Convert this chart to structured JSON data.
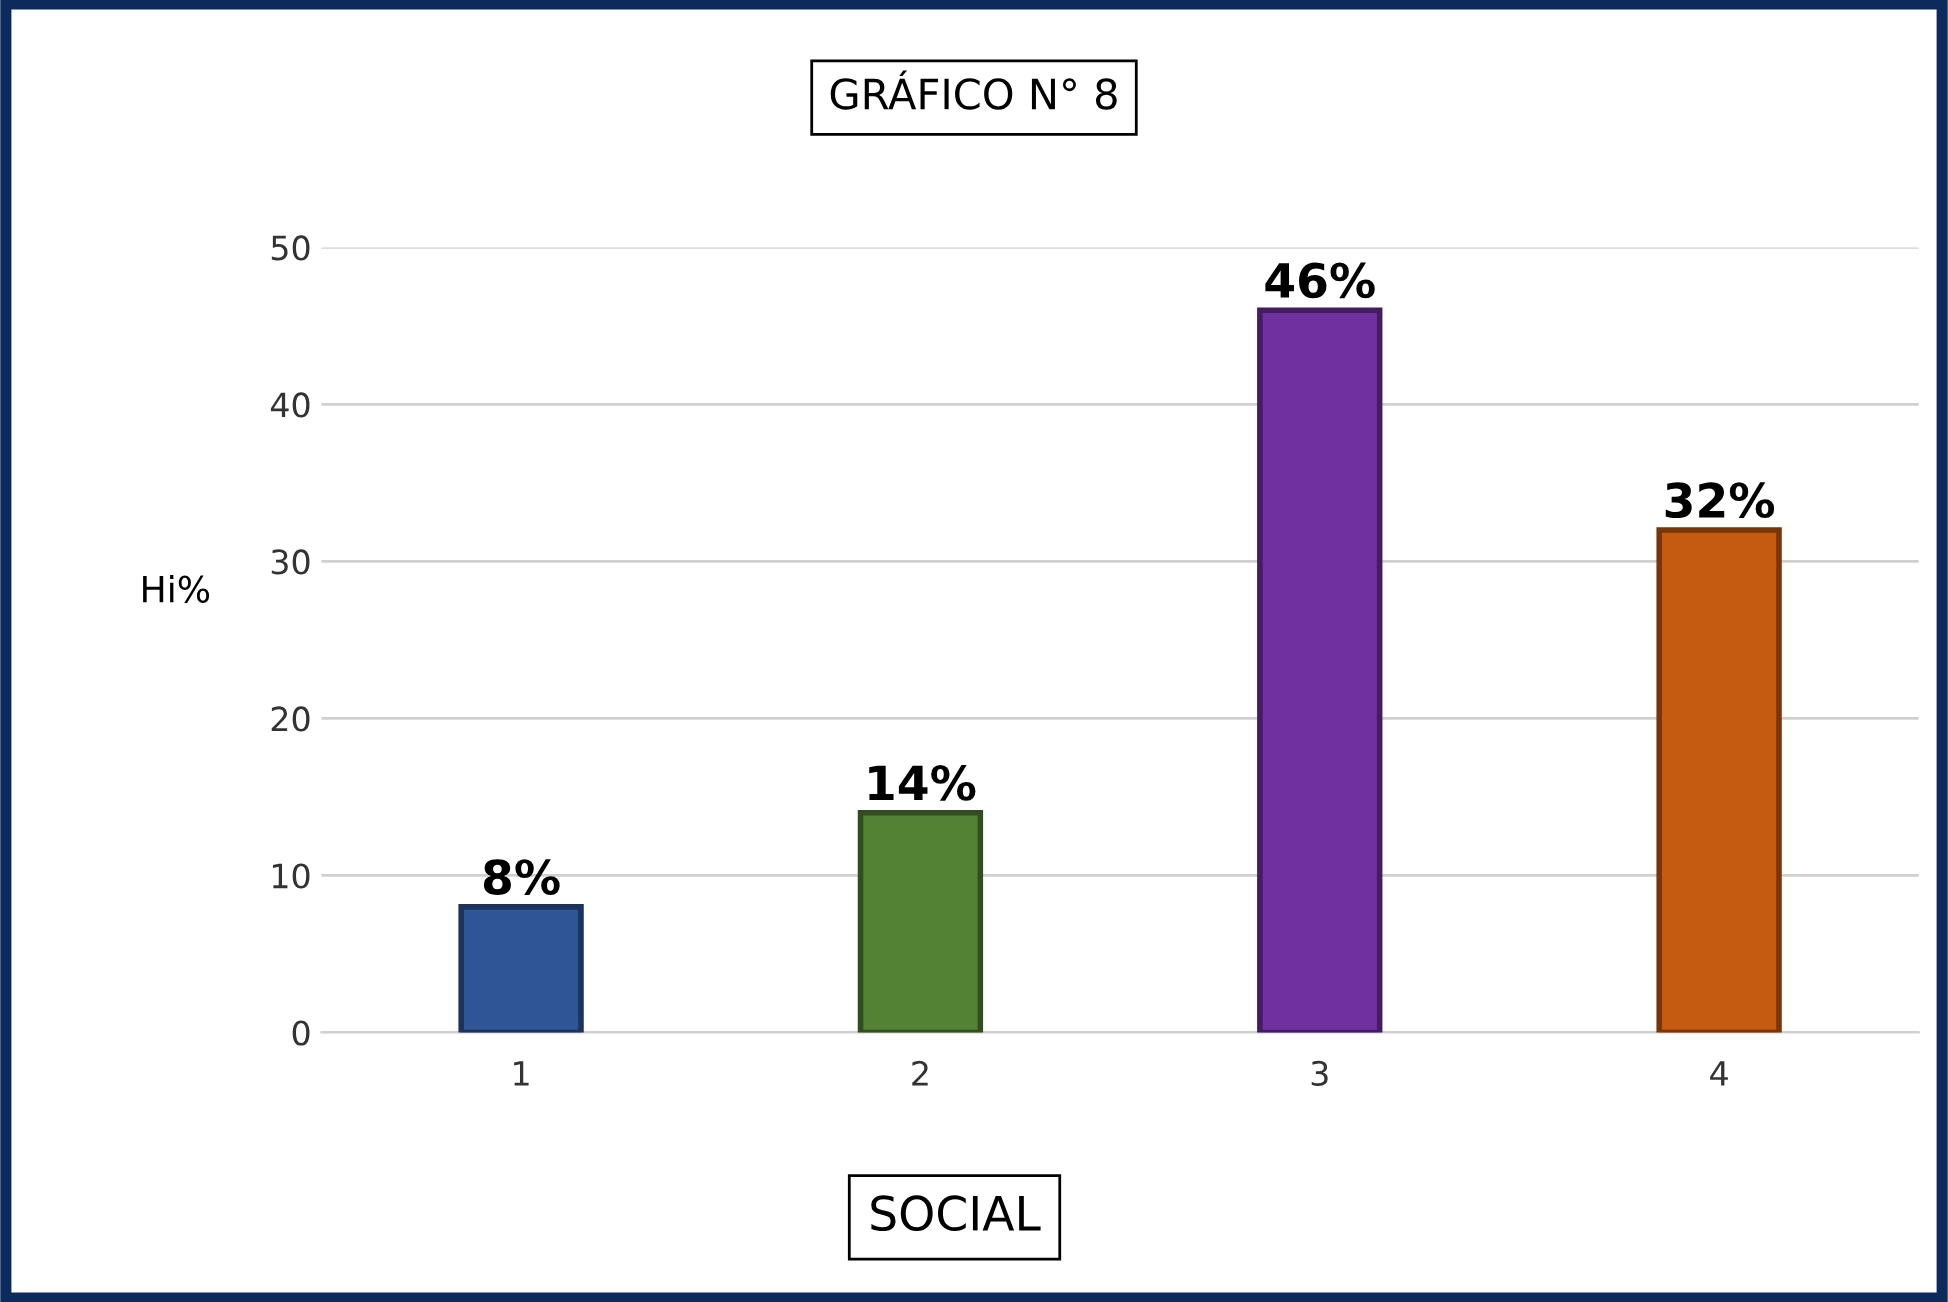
{
  "chart_data": {
    "type": "bar",
    "title": "GRÁFICO N° 8",
    "xlabel": "SOCIAL",
    "ylabel": "Hi%",
    "categories": [
      "1",
      "2",
      "3",
      "4"
    ],
    "values": [
      8,
      14,
      46,
      32
    ],
    "colors": [
      "#2f5597",
      "#548235",
      "#7030a0",
      "#c55a11"
    ],
    "value_labels": [
      "8%",
      "14%",
      "46%",
      "32%"
    ],
    "ylim": [
      0,
      50
    ],
    "yticks": [
      0,
      10,
      20,
      30,
      40,
      50
    ],
    "grid": "y",
    "legend": false
  }
}
